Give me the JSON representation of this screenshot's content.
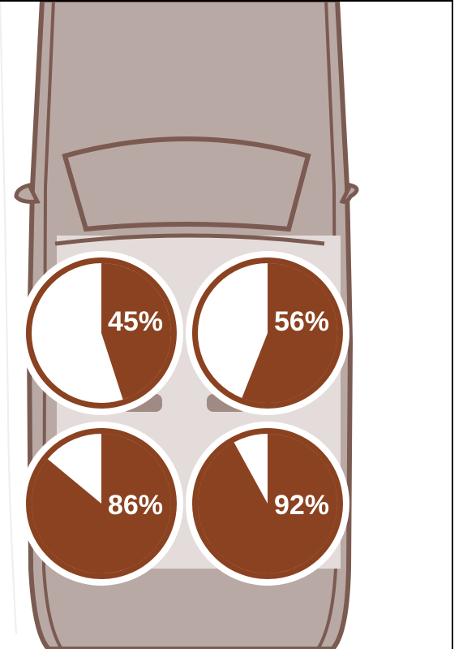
{
  "chart_data": [
    {
      "type": "pie",
      "values": [
        45
      ],
      "value_labels": [
        "45%"
      ],
      "color": "#8b4220"
    },
    {
      "type": "pie",
      "values": [
        56
      ],
      "value_labels": [
        "56%"
      ],
      "color": "#8b4220"
    },
    {
      "type": "pie",
      "values": [
        86
      ],
      "value_labels": [
        "86%"
      ],
      "color": "#8b4220"
    },
    {
      "type": "pie",
      "values": [
        92
      ],
      "value_labels": [
        "92%"
      ],
      "color": "#8b4220"
    }
  ]
}
